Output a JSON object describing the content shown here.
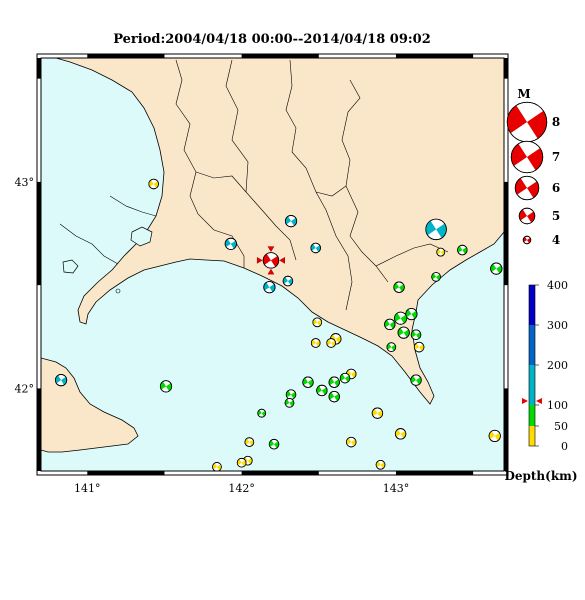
{
  "title": "Period:2004/04/18 00:00--2014/04/18 09:02",
  "map": {
    "lon_range": [
      140.7,
      143.7
    ],
    "lat_range": [
      41.6,
      43.6
    ],
    "lon_ticks": [
      {
        "value": 141,
        "label": "141°"
      },
      {
        "value": 142,
        "label": "142°"
      },
      {
        "value": 143,
        "label": "143°"
      }
    ],
    "lat_ticks": [
      {
        "value": 42,
        "label": "42°"
      },
      {
        "value": 43,
        "label": "43°"
      }
    ],
    "colors": {
      "sea": "#dcfafa",
      "land": "#fae6c8",
      "border": "#000000"
    }
  },
  "magnitude_legend": {
    "title": "M",
    "entries": [
      {
        "label": "8",
        "m": 8
      },
      {
        "label": "7",
        "m": 7
      },
      {
        "label": "6",
        "m": 6
      },
      {
        "label": "5",
        "m": 5
      },
      {
        "label": "4",
        "m": 4
      }
    ]
  },
  "depth_legend": {
    "title": "Depth(km)",
    "labels": [
      "400",
      "300",
      "200",
      "100",
      "50",
      "0"
    ],
    "colors": [
      "#ffdc00",
      "#00dc00",
      "#00b4c8",
      "#0064c8",
      "#0000c8"
    ]
  },
  "current_event": {
    "lon": 142.19,
    "lat": 42.62,
    "depth": 110,
    "m": 4.9
  },
  "events": [
    {
      "lon": 141.43,
      "lat": 42.99,
      "c": "#ffdc00",
      "m": 4.2
    },
    {
      "lon": 142.32,
      "lat": 42.81,
      "c": "#00b4c8",
      "m": 4.4
    },
    {
      "lon": 141.93,
      "lat": 42.7,
      "c": "#00b4c8",
      "m": 4.4
    },
    {
      "lon": 142.48,
      "lat": 42.68,
      "c": "#00b4c8",
      "m": 4.2
    },
    {
      "lon": 143.26,
      "lat": 42.77,
      "c": "#00b4c8",
      "m": 5.5
    },
    {
      "lon": 143.29,
      "lat": 42.66,
      "c": "#ffdc00",
      "m": 4.0
    },
    {
      "lon": 143.43,
      "lat": 42.67,
      "c": "#00dc00",
      "m": 4.2
    },
    {
      "lon": 143.65,
      "lat": 42.58,
      "c": "#00dc00",
      "m": 4.4
    },
    {
      "lon": 143.26,
      "lat": 42.54,
      "c": "#00dc00",
      "m": 4.1
    },
    {
      "lon": 142.3,
      "lat": 42.52,
      "c": "#00b4c8",
      "m": 4.2
    },
    {
      "lon": 142.18,
      "lat": 42.49,
      "c": "#00b4c8",
      "m": 4.4
    },
    {
      "lon": 143.02,
      "lat": 42.49,
      "c": "#00dc00",
      "m": 4.3
    },
    {
      "lon": 142.49,
      "lat": 42.32,
      "c": "#ffdc00",
      "m": 4.1
    },
    {
      "lon": 143.1,
      "lat": 42.36,
      "c": "#00dc00",
      "m": 4.4
    },
    {
      "lon": 143.03,
      "lat": 42.34,
      "c": "#00dc00",
      "m": 4.5
    },
    {
      "lon": 142.96,
      "lat": 42.31,
      "c": "#00dc00",
      "m": 4.3
    },
    {
      "lon": 143.05,
      "lat": 42.27,
      "c": "#00dc00",
      "m": 4.4
    },
    {
      "lon": 143.13,
      "lat": 42.26,
      "c": "#00dc00",
      "m": 4.2
    },
    {
      "lon": 142.61,
      "lat": 42.24,
      "c": "#ffdc00",
      "m": 4.3
    },
    {
      "lon": 142.58,
      "lat": 42.22,
      "c": "#ffdc00",
      "m": 4.1
    },
    {
      "lon": 142.48,
      "lat": 42.22,
      "c": "#ffdc00",
      "m": 4.1
    },
    {
      "lon": 143.15,
      "lat": 42.2,
      "c": "#ffdc00",
      "m": 4.2
    },
    {
      "lon": 142.97,
      "lat": 42.2,
      "c": "#00dc00",
      "m": 4.1
    },
    {
      "lon": 140.83,
      "lat": 42.04,
      "c": "#00b4c8",
      "m": 4.4
    },
    {
      "lon": 141.51,
      "lat": 42.01,
      "c": "#00dc00",
      "m": 4.4
    },
    {
      "lon": 142.71,
      "lat": 42.07,
      "c": "#ffdc00",
      "m": 4.2
    },
    {
      "lon": 142.67,
      "lat": 42.05,
      "c": "#00dc00",
      "m": 4.2
    },
    {
      "lon": 142.6,
      "lat": 42.03,
      "c": "#00dc00",
      "m": 4.3
    },
    {
      "lon": 142.43,
      "lat": 42.03,
      "c": "#00dc00",
      "m": 4.3
    },
    {
      "lon": 142.52,
      "lat": 41.99,
      "c": "#00dc00",
      "m": 4.3
    },
    {
      "lon": 142.6,
      "lat": 41.96,
      "c": "#00dc00",
      "m": 4.3
    },
    {
      "lon": 142.32,
      "lat": 41.97,
      "c": "#00dc00",
      "m": 4.2
    },
    {
      "lon": 142.31,
      "lat": 41.93,
      "c": "#00dc00",
      "m": 4.1
    },
    {
      "lon": 143.13,
      "lat": 42.04,
      "c": "#00dc00",
      "m": 4.3
    },
    {
      "lon": 142.13,
      "lat": 41.88,
      "c": "#00dc00",
      "m": 4.0
    },
    {
      "lon": 142.88,
      "lat": 41.88,
      "c": "#ffdc00",
      "m": 4.3
    },
    {
      "lon": 143.03,
      "lat": 41.78,
      "c": "#ffdc00",
      "m": 4.3
    },
    {
      "lon": 143.64,
      "lat": 41.77,
      "c": "#ffdc00",
      "m": 4.4
    },
    {
      "lon": 142.21,
      "lat": 41.73,
      "c": "#00dc00",
      "m": 4.2
    },
    {
      "lon": 142.05,
      "lat": 41.74,
      "c": "#ffdc00",
      "m": 4.1
    },
    {
      "lon": 142.04,
      "lat": 41.65,
      "c": "#ffdc00",
      "m": 4.1
    },
    {
      "lon": 142.0,
      "lat": 41.64,
      "c": "#ffdc00",
      "m": 4.1
    },
    {
      "lon": 141.84,
      "lat": 41.62,
      "c": "#ffdc00",
      "m": 4.1
    },
    {
      "lon": 142.71,
      "lat": 41.74,
      "c": "#ffdc00",
      "m": 4.2
    },
    {
      "lon": 142.9,
      "lat": 41.63,
      "c": "#ffdc00",
      "m": 4.1
    }
  ]
}
